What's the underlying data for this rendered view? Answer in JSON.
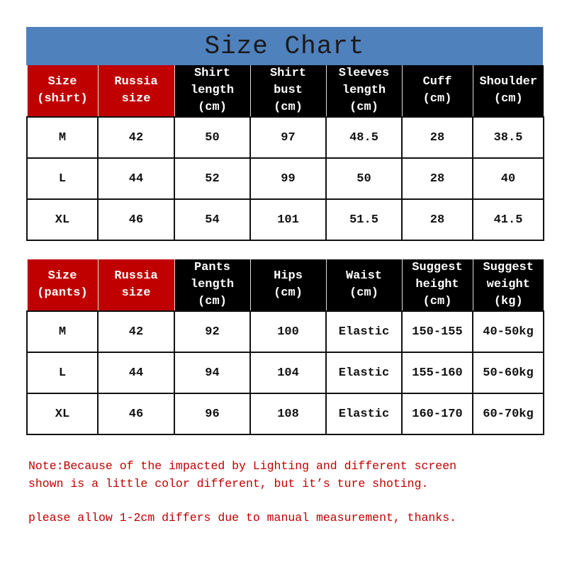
{
  "title": "Size Chart",
  "colors": {
    "title_bg": "#4f81bd",
    "header_red": "#c00000",
    "header_black": "#000000",
    "note": "#c00000"
  },
  "shirt_table": {
    "headers": [
      [
        "Size",
        "(shirt)"
      ],
      [
        "Russia",
        "size"
      ],
      [
        "Shirt",
        "length",
        "(cm)"
      ],
      [
        "Shirt",
        "bust",
        "(cm)"
      ],
      [
        "Sleeves",
        "length",
        "(cm)"
      ],
      [
        "Cuff",
        "(cm)"
      ],
      [
        "Shoulder",
        "(cm)"
      ]
    ],
    "rows": [
      [
        "M",
        "42",
        "50",
        "97",
        "48.5",
        "28",
        "38.5"
      ],
      [
        "L",
        "44",
        "52",
        "99",
        "50",
        "28",
        "40"
      ],
      [
        "XL",
        "46",
        "54",
        "101",
        "51.5",
        "28",
        "41.5"
      ]
    ]
  },
  "pants_table": {
    "headers": [
      [
        "Size",
        "(pants)"
      ],
      [
        "Russia",
        "size"
      ],
      [
        "Pants",
        "length",
        "(cm)"
      ],
      [
        "Hips",
        "(cm)"
      ],
      [
        "Waist",
        "(cm)"
      ],
      [
        "Suggest",
        "height",
        "(cm)"
      ],
      [
        "Suggest",
        "weight",
        "(kg)"
      ]
    ],
    "rows": [
      [
        "M",
        "42",
        "92",
        "100",
        "Elastic",
        "150-155",
        "40-50kg"
      ],
      [
        "L",
        "44",
        "94",
        "104",
        "Elastic",
        "155-160",
        "50-60kg"
      ],
      [
        "XL",
        "46",
        "96",
        "108",
        "Elastic",
        "160-170",
        "60-70kg"
      ]
    ]
  },
  "notes": [
    "Note:Because of the impacted by Lighting and different screen",
    "shown is a little color different, but it’s ture shoting.",
    "please allow 1-2cm differs due to manual measurement, thanks."
  ]
}
